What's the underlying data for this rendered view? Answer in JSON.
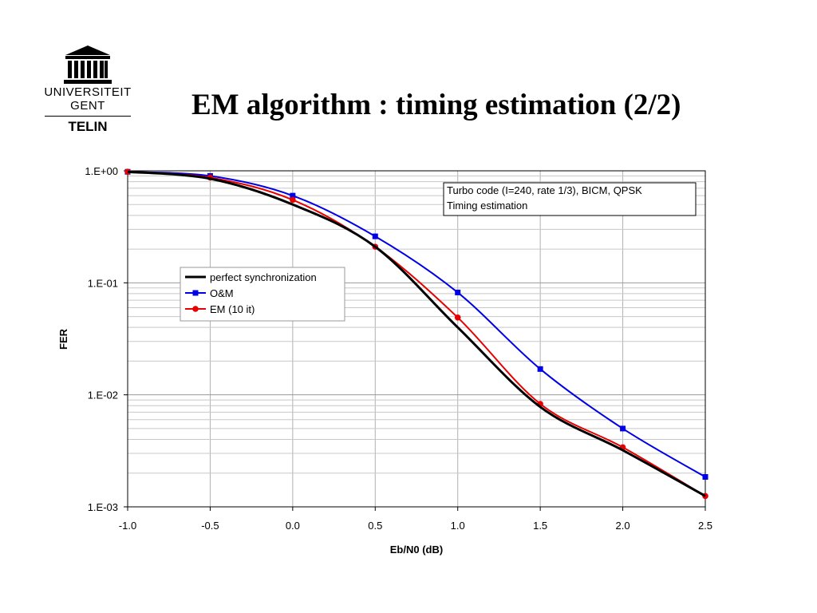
{
  "slide": {
    "title": "EM algorithm : timing estimation (2/2)"
  },
  "logo": {
    "icon": "university-building-icon",
    "line1": "UNIVERSITEIT",
    "line2": "GENT",
    "department": "TELIN"
  },
  "annotation": {
    "line1": "Turbo code  (I=240, rate 1/3), BICM, QPSK",
    "line2": "Timing estimation"
  },
  "chart_data": {
    "type": "line",
    "xlabel": "Eb/N0 (dB)",
    "ylabel": "FER",
    "xlim": [
      -1.0,
      2.5
    ],
    "ylim": [
      0.001,
      1
    ],
    "yscale": "log",
    "grid": true,
    "legend_position": "center-left",
    "x_ticks": [
      "-1.0",
      "-0.5",
      "0.0",
      "0.5",
      "1.0",
      "1.5",
      "2.0",
      "2.5"
    ],
    "y_ticks": [
      "1.E+00",
      "1.E-01",
      "1.E-02",
      "1.E-03"
    ],
    "series": [
      {
        "name": "perfect synchronization",
        "color": "#000000",
        "marker": "none",
        "x": [
          -1.0,
          -0.5,
          0.0,
          0.5,
          1.0,
          1.5,
          2.0,
          2.5
        ],
        "y": [
          0.98,
          0.85,
          0.5,
          0.21,
          0.04,
          0.0078,
          0.0032,
          0.00125
        ]
      },
      {
        "name": "O&M",
        "color": "#0000e6",
        "marker": "square",
        "x": [
          -1.0,
          -0.5,
          0.0,
          0.5,
          1.0,
          1.5,
          2.0,
          2.5
        ],
        "y": [
          0.98,
          0.9,
          0.6,
          0.26,
          0.082,
          0.017,
          0.005,
          0.00185
        ]
      },
      {
        "name": "EM (10 it)",
        "color": "#e60000",
        "marker": "circle",
        "x": [
          -1.0,
          -0.5,
          0.0,
          0.5,
          1.0,
          1.5,
          2.0,
          2.5
        ],
        "y": [
          0.98,
          0.87,
          0.55,
          0.21,
          0.049,
          0.0083,
          0.0034,
          0.00125
        ]
      }
    ]
  }
}
